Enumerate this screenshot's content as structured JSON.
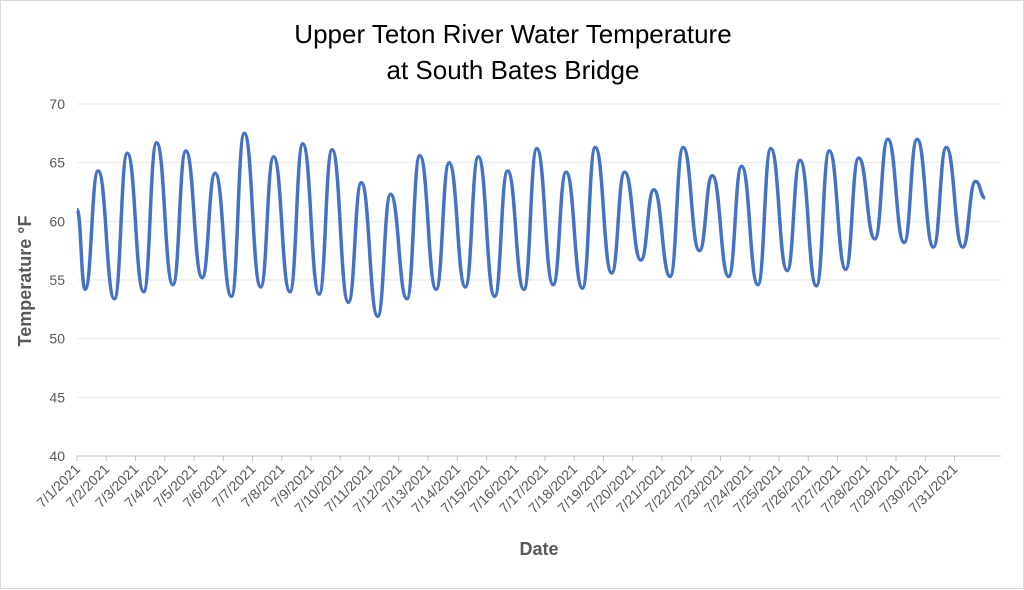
{
  "chart_data": {
    "type": "line",
    "title": "Upper Teton River Water Temperature",
    "subtitle": "at South Bates Bridge",
    "xlabel": "Date",
    "ylabel": "Temperature °F",
    "ylim": [
      40,
      70
    ],
    "yticks": [
      40,
      45,
      50,
      55,
      60,
      65,
      70
    ],
    "grid": true,
    "categories": [
      "7/1/2021",
      "7/2/2021",
      "7/3/2021",
      "7/4/2021",
      "7/5/2021",
      "7/6/2021",
      "7/7/2021",
      "7/8/2021",
      "7/9/2021",
      "7/10/2021",
      "7/11/2021",
      "7/12/2021",
      "7/13/2021",
      "7/14/2021",
      "7/15/2021",
      "7/16/2021",
      "7/17/2021",
      "7/18/2021",
      "7/19/2021",
      "7/20/2021",
      "7/21/2021",
      "7/22/2021",
      "7/23/2021",
      "7/24/2021",
      "7/25/2021",
      "7/26/2021",
      "7/27/2021",
      "7/28/2021",
      "7/29/2021",
      "7/30/2021",
      "7/31/2021"
    ],
    "series": [
      {
        "color": "#4472C4",
        "days": [
          {
            "min": 54.2,
            "max": 64.3
          },
          {
            "min": 53.4,
            "max": 65.8
          },
          {
            "min": 54.0,
            "max": 66.7
          },
          {
            "min": 54.6,
            "max": 66.0
          },
          {
            "min": 55.2,
            "max": 64.1
          },
          {
            "min": 53.6,
            "max": 67.5
          },
          {
            "min": 54.4,
            "max": 65.5
          },
          {
            "min": 54.0,
            "max": 66.6
          },
          {
            "min": 53.8,
            "max": 66.1
          },
          {
            "min": 53.1,
            "max": 63.3
          },
          {
            "min": 51.9,
            "max": 62.3
          },
          {
            "min": 53.4,
            "max": 65.6
          },
          {
            "min": 54.2,
            "max": 65.0
          },
          {
            "min": 54.4,
            "max": 65.5
          },
          {
            "min": 53.6,
            "max": 64.3
          },
          {
            "min": 54.2,
            "max": 66.2
          },
          {
            "min": 54.6,
            "max": 64.2
          },
          {
            "min": 54.3,
            "max": 66.3
          },
          {
            "min": 55.6,
            "max": 64.2
          },
          {
            "min": 56.7,
            "max": 62.7
          },
          {
            "min": 55.3,
            "max": 66.3
          },
          {
            "min": 57.5,
            "max": 63.9
          },
          {
            "min": 55.3,
            "max": 64.7
          },
          {
            "min": 54.6,
            "max": 66.2
          },
          {
            "min": 55.8,
            "max": 65.2
          },
          {
            "min": 54.5,
            "max": 66.0
          },
          {
            "min": 55.9,
            "max": 65.4
          },
          {
            "min": 58.5,
            "max": 67.0
          },
          {
            "min": 58.2,
            "max": 67.0
          },
          {
            "min": 57.8,
            "max": 66.3
          },
          {
            "min": 57.8,
            "max": 63.4
          }
        ],
        "start_value": 61.0,
        "end_value": 62.0
      }
    ]
  }
}
